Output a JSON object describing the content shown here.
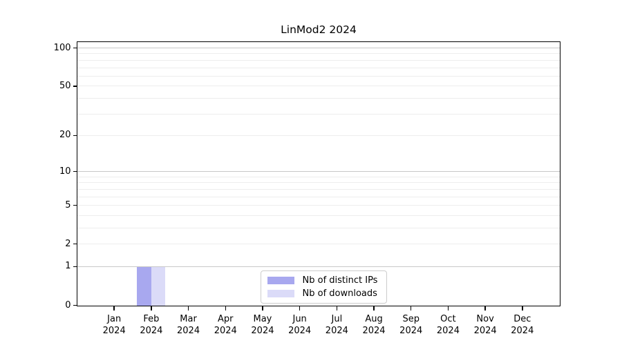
{
  "chart_data": {
    "type": "bar",
    "title": "LinMod2 2024",
    "x": {
      "categories": [
        {
          "month": "Jan",
          "year": "2024"
        },
        {
          "month": "Feb",
          "year": "2024"
        },
        {
          "month": "Mar",
          "year": "2024"
        },
        {
          "month": "Apr",
          "year": "2024"
        },
        {
          "month": "May",
          "year": "2024"
        },
        {
          "month": "Jun",
          "year": "2024"
        },
        {
          "month": "Jul",
          "year": "2024"
        },
        {
          "month": "Aug",
          "year": "2024"
        },
        {
          "month": "Sep",
          "year": "2024"
        },
        {
          "month": "Oct",
          "year": "2024"
        },
        {
          "month": "Nov",
          "year": "2024"
        },
        {
          "month": "Dec",
          "year": "2024"
        }
      ]
    },
    "series": [
      {
        "name": "Nb of distinct IPs",
        "color": "#a8a8ef",
        "values": [
          0,
          1,
          0,
          0,
          0,
          0,
          0,
          0,
          0,
          0,
          0,
          0
        ]
      },
      {
        "name": "Nb of downloads",
        "color": "#dbdbf8",
        "values": [
          0,
          1,
          0,
          0,
          0,
          0,
          0,
          0,
          0,
          0,
          0,
          0
        ]
      }
    ],
    "y_axis": {
      "scale": "log1p",
      "range": [
        0,
        112
      ],
      "ticks": [
        0,
        1,
        2,
        5,
        10,
        20,
        50,
        100
      ],
      "major_gridlines": [
        1,
        10,
        100
      ],
      "minor_gridlines": [
        2,
        3,
        4,
        5,
        6,
        7,
        8,
        9,
        20,
        30,
        40,
        50,
        60,
        70,
        80,
        90
      ]
    },
    "legend": {
      "position": "lower-center"
    },
    "grid": true,
    "colors": {
      "major_grid": "#c8c8c8",
      "minor_grid": "#ededed",
      "axis": "#000000",
      "legend_border": "#cccccc",
      "background": "#ffffff"
    }
  }
}
